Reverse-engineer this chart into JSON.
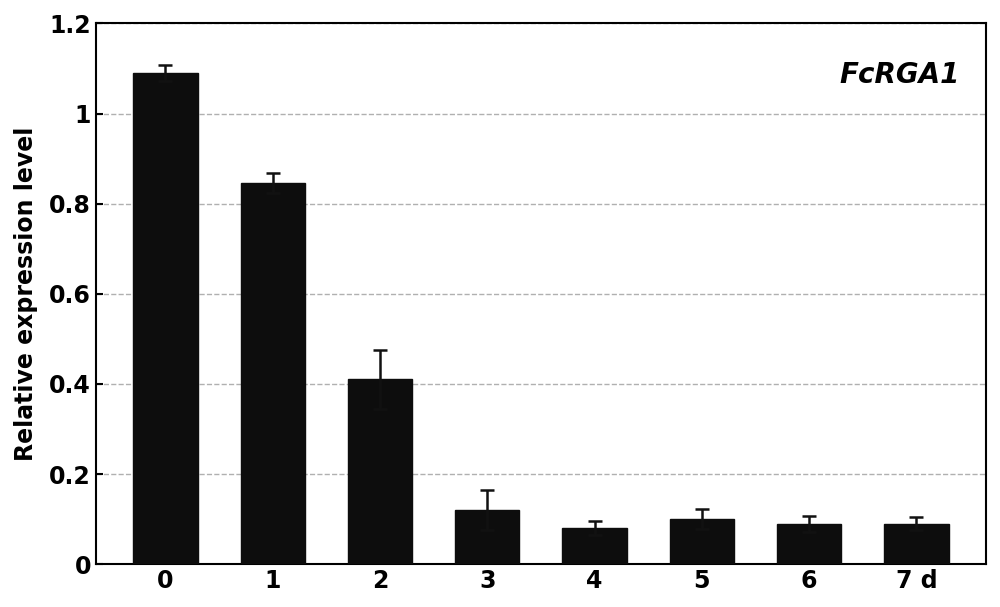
{
  "categories": [
    "0",
    "1",
    "2",
    "3",
    "4",
    "5",
    "6",
    "7 d"
  ],
  "values": [
    1.09,
    0.845,
    0.41,
    0.12,
    0.08,
    0.1,
    0.09,
    0.09
  ],
  "errors": [
    0.018,
    0.022,
    0.065,
    0.045,
    0.015,
    0.022,
    0.018,
    0.015
  ],
  "bar_color": "#0d0d0d",
  "ylabel": "Relative expression level",
  "ylim": [
    0,
    1.2
  ],
  "yticks": [
    0,
    0.2,
    0.4,
    0.6,
    0.8,
    1.0,
    1.2
  ],
  "ytick_labels": [
    "0",
    "0.2",
    "0.4",
    "0.6",
    "0.8",
    "1",
    "1.2"
  ],
  "grid_color": "#b0b0b0",
  "annotation_text": "FcRGA1",
  "background_color": "#ffffff",
  "bar_width": 0.6,
  "figsize": [
    10.0,
    6.07
  ]
}
